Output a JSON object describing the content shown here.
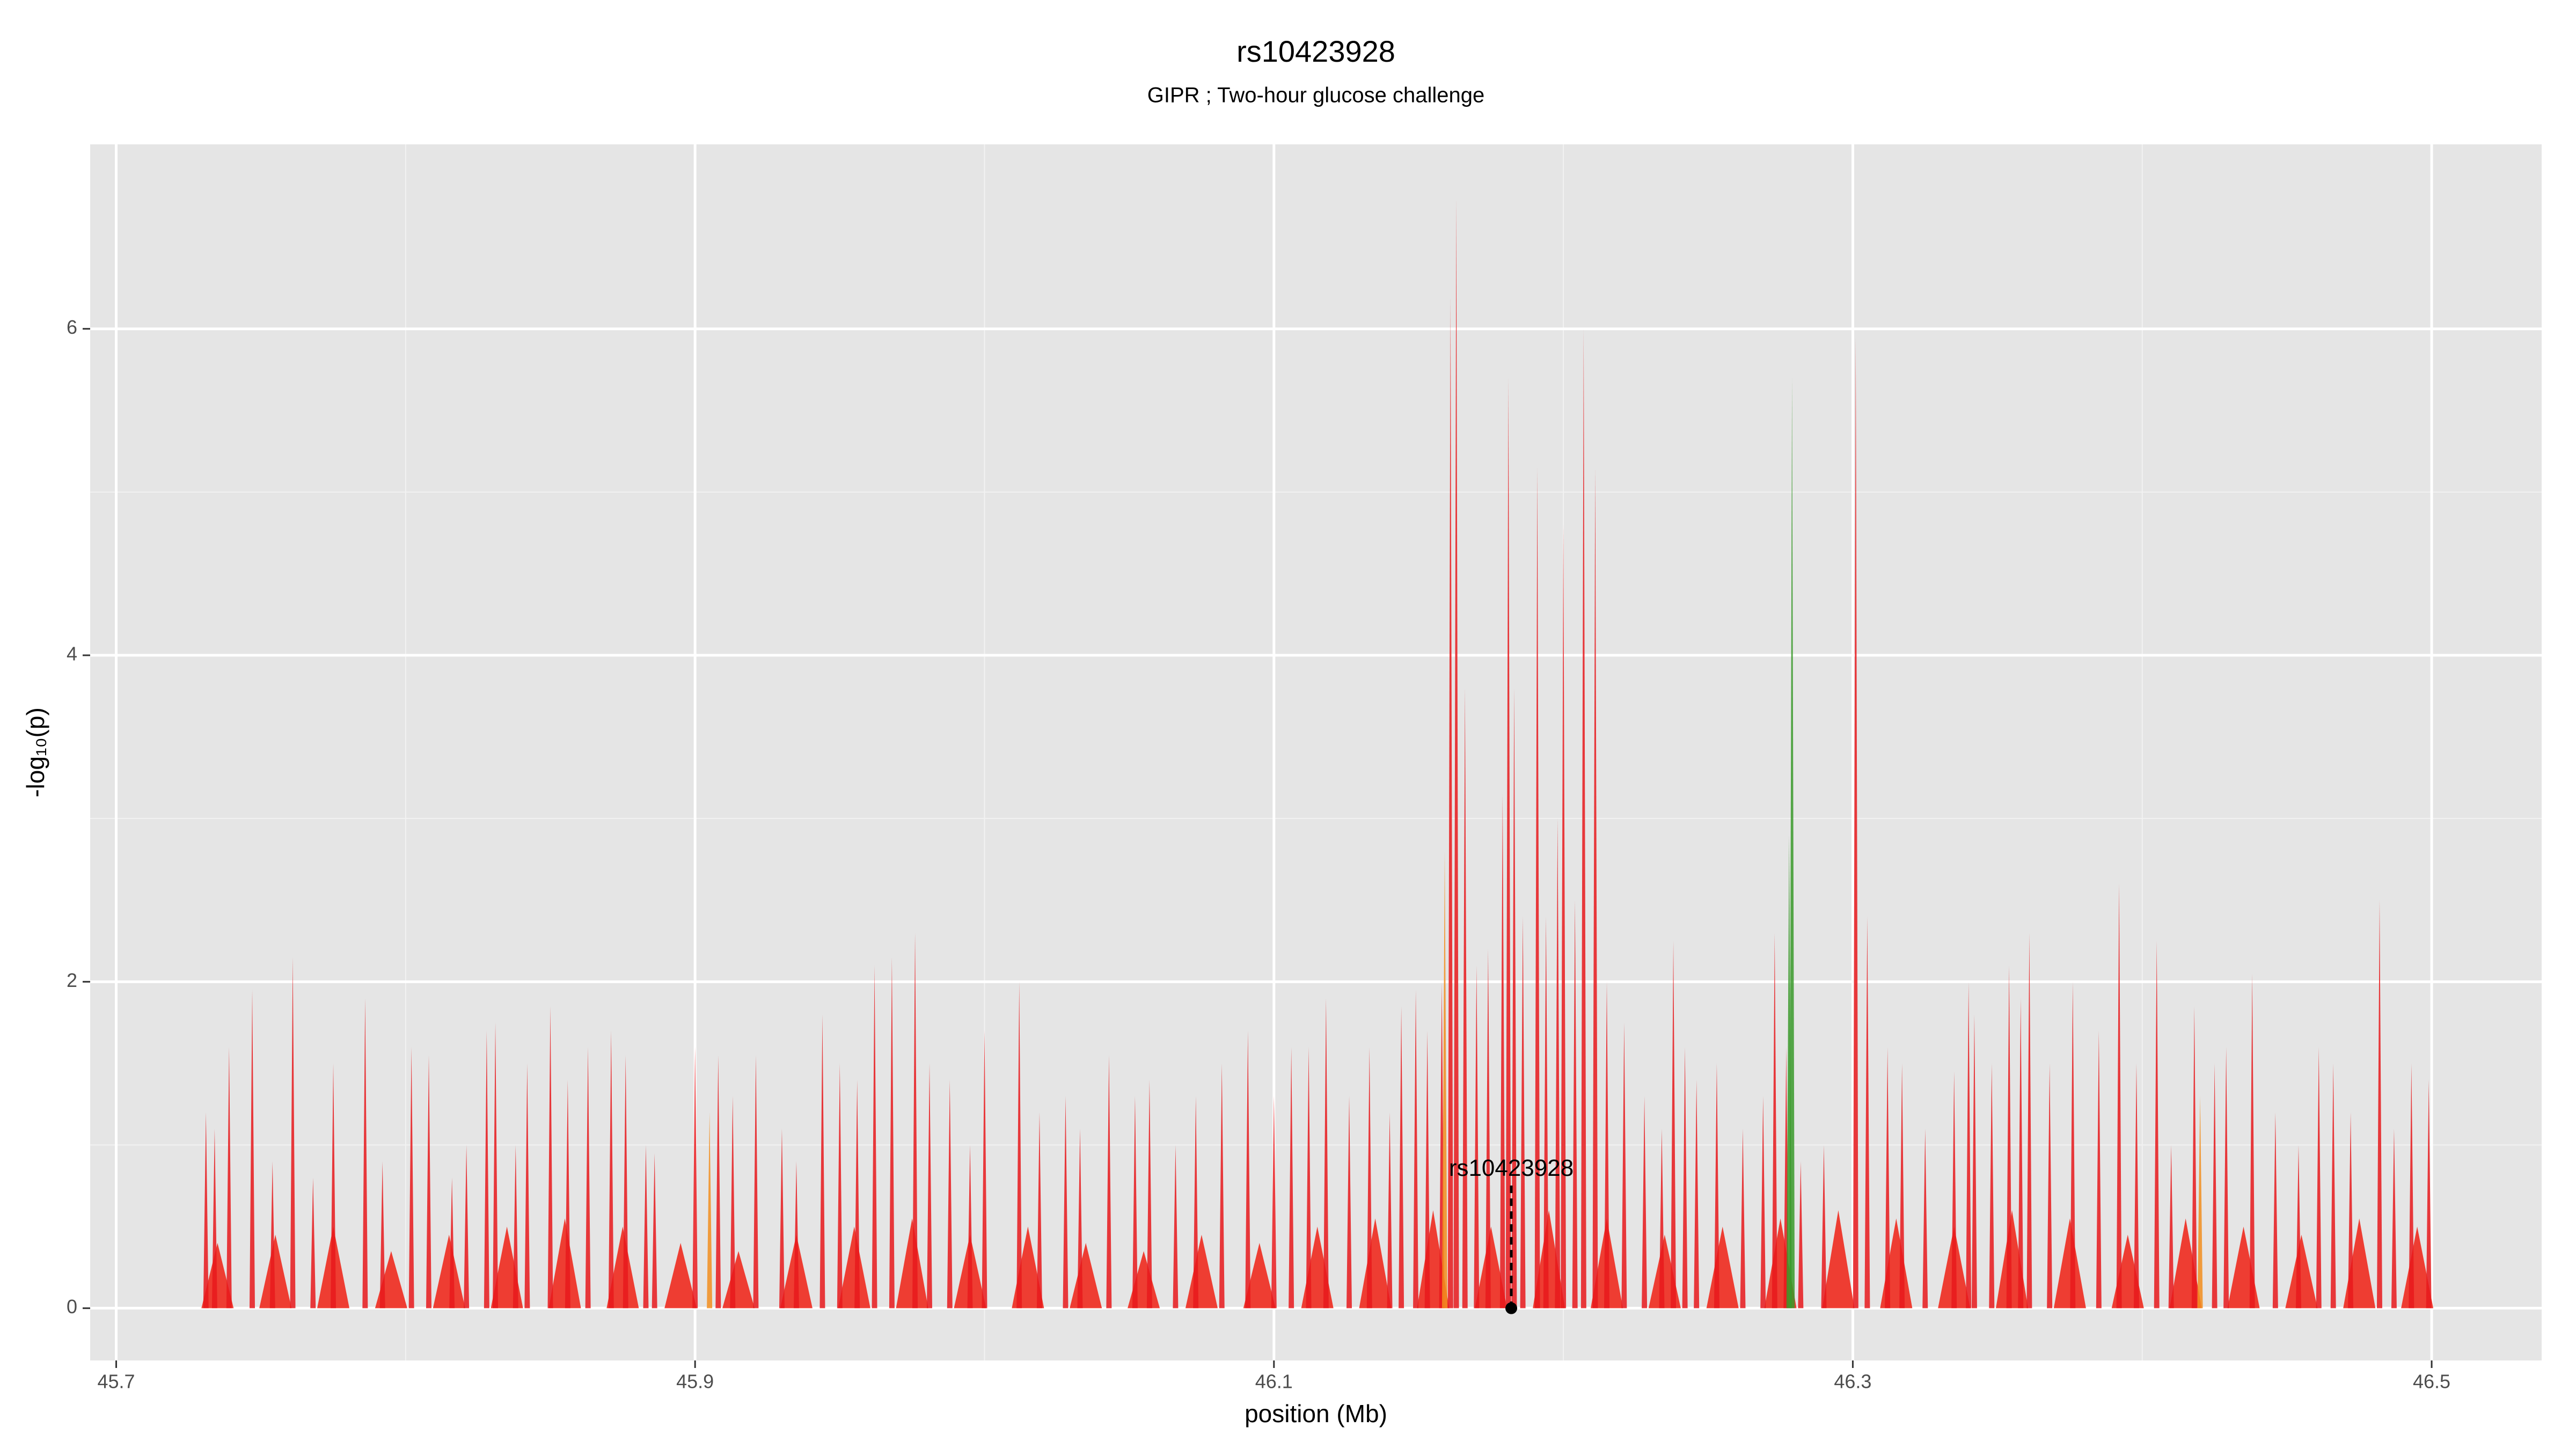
{
  "chart_data": {
    "type": "spike",
    "title": "rs10423928",
    "subtitle": "GIPR ; Two-hour glucose challenge",
    "xlabel": "position (Mb)",
    "ylabel": "-log₁₀(p)",
    "xlim": [
      45.691,
      46.538
    ],
    "ylim": [
      -0.32,
      7.13
    ],
    "xticks": [
      45.7,
      45.9,
      46.1,
      46.3,
      46.5
    ],
    "yticks": [
      0,
      2,
      4,
      6
    ],
    "grid": true,
    "series": [
      {
        "color": "#ee2a1e",
        "x": [
          45.735,
          45.755,
          45.775,
          45.795,
          45.815,
          45.835,
          45.855,
          45.875,
          45.895,
          45.915,
          45.935,
          45.955,
          45.975,
          45.995,
          46.015,
          46.035,
          46.055,
          46.075,
          46.095,
          46.115,
          46.135,
          46.155,
          46.175,
          46.195,
          46.215,
          46.235,
          46.255,
          46.275,
          46.295,
          46.315,
          46.335,
          46.355,
          46.375,
          46.395,
          46.415,
          46.435,
          46.455,
          46.475,
          46.495
        ],
        "values": [
          0.4,
          0.45,
          0.5,
          0.35,
          0.45,
          0.5,
          0.55,
          0.5,
          0.4,
          0.35,
          0.45,
          0.5,
          0.55,
          0.45,
          0.5,
          0.4,
          0.35,
          0.45,
          0.4,
          0.5,
          0.55,
          0.6,
          0.5,
          0.6,
          0.55,
          0.45,
          0.5,
          0.55,
          0.6,
          0.55,
          0.5,
          0.6,
          0.55,
          0.45,
          0.55,
          0.5,
          0.45,
          0.55,
          0.5
        ]
      },
      {
        "color": "#e8191c",
        "x": [
          45.731,
          45.734,
          45.739,
          45.747,
          45.754,
          45.761,
          45.768,
          45.775,
          45.786,
          45.792,
          45.802,
          45.808,
          45.816,
          45.821,
          45.828,
          45.831,
          45.838,
          45.842,
          45.85,
          45.856,
          45.863,
          45.871,
          45.876,
          45.883,
          45.886,
          45.9,
          45.908,
          45.913,
          45.921,
          45.93,
          45.935,
          45.944,
          45.95,
          45.956,
          45.962,
          45.968,
          45.976,
          45.981,
          45.988,
          45.995,
          46.0,
          46.012,
          46.019,
          46.028,
          46.033,
          46.043,
          46.052,
          46.057,
          46.066,
          46.073,
          46.082,
          46.091,
          46.1,
          46.106,
          46.112,
          46.118,
          46.126,
          46.133,
          46.14,
          46.144,
          46.149,
          46.153,
          46.158,
          46.161,
          46.163,
          46.166,
          46.17,
          46.174,
          46.179,
          46.181,
          46.183,
          46.186,
          46.191,
          46.194,
          46.198,
          46.2,
          46.204,
          46.207,
          46.211,
          46.215,
          46.221,
          46.228,
          46.234,
          46.238,
          46.242,
          46.246,
          46.253,
          46.262,
          46.269,
          46.273,
          46.277,
          46.282,
          46.29,
          46.301,
          46.305,
          46.312,
          46.317,
          46.325,
          46.335,
          46.34,
          46.342,
          46.348,
          46.354,
          46.358,
          46.361,
          46.368,
          46.376,
          46.385,
          46.392,
          46.398,
          46.405,
          46.41,
          46.418,
          46.425,
          46.429,
          46.438,
          46.446,
          46.454,
          46.461,
          46.466,
          46.472,
          46.482,
          46.487,
          46.493,
          46.499
        ],
        "values": [
          1.2,
          1.1,
          1.6,
          1.95,
          0.9,
          2.15,
          0.8,
          1.5,
          1.9,
          0.9,
          1.6,
          1.55,
          0.8,
          1.0,
          1.7,
          1.75,
          1.0,
          1.5,
          1.85,
          1.4,
          1.6,
          1.7,
          1.55,
          1.0,
          0.95,
          1.6,
          1.55,
          1.3,
          1.55,
          1.1,
          0.9,
          1.8,
          1.5,
          1.4,
          2.1,
          2.15,
          2.3,
          1.5,
          1.4,
          1.0,
          1.7,
          2.0,
          1.2,
          1.3,
          1.1,
          1.55,
          1.3,
          1.4,
          1.0,
          1.3,
          1.5,
          1.7,
          1.3,
          1.6,
          1.6,
          1.9,
          1.3,
          1.6,
          1.2,
          1.85,
          1.95,
          1.7,
          2.0,
          6.2,
          6.8,
          3.8,
          2.1,
          2.2,
          3.15,
          5.7,
          3.8,
          2.4,
          5.15,
          2.4,
          3.0,
          4.8,
          2.5,
          6.0,
          5.15,
          2.0,
          1.75,
          1.3,
          1.1,
          2.25,
          1.6,
          1.4,
          1.5,
          1.1,
          1.3,
          2.3,
          1.6,
          0.9,
          1.0,
          5.95,
          2.4,
          1.6,
          1.5,
          1.1,
          1.45,
          2.0,
          1.8,
          1.5,
          2.1,
          1.9,
          2.3,
          1.5,
          2.0,
          1.7,
          2.6,
          1.5,
          2.25,
          1.0,
          1.85,
          1.5,
          1.6,
          2.05,
          1.2,
          1.0,
          1.6,
          1.5,
          1.2,
          2.5,
          1.1,
          1.5,
          1.4
        ]
      },
      {
        "color": "#f28e1e",
        "x": [
          45.905,
          46.159,
          46.42
        ],
        "values": [
          1.2,
          2.8,
          1.3
        ]
      },
      {
        "color": "#3a9a2a",
        "x": [
          46.278,
          46.279
        ],
        "values": [
          2.9,
          5.7
        ]
      }
    ],
    "annotation": {
      "text": "rs10423928",
      "x": 46.182,
      "y": 0.85,
      "marker_y": 0
    }
  }
}
